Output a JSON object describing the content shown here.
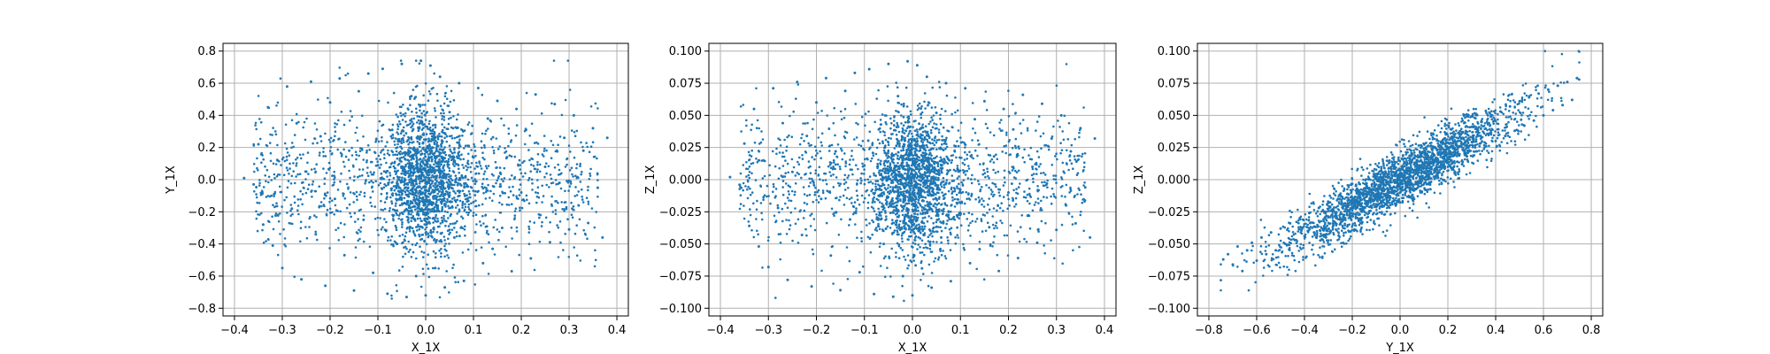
{
  "chart_data": [
    {
      "type": "scatter",
      "title": "",
      "xlabel": "X_1X",
      "ylabel": "Y_1X",
      "xlim": [
        -0.4,
        0.4
      ],
      "ylim": [
        -0.8,
        0.8
      ],
      "xticks": [
        -0.4,
        -0.3,
        -0.2,
        -0.1,
        0.0,
        0.1,
        0.2,
        0.3,
        0.4
      ],
      "yticks": [
        -0.8,
        -0.6,
        -0.4,
        -0.2,
        0.0,
        0.2,
        0.4,
        0.6,
        0.8
      ],
      "xtick_labels": [
        "−0.4",
        "−0.3",
        "−0.2",
        "−0.1",
        "0.0",
        "0.1",
        "0.2",
        "0.3",
        "0.4"
      ],
      "ytick_labels": [
        "−0.8",
        "−0.6",
        "−0.4",
        "−0.2",
        "0.0",
        "0.2",
        "0.4",
        "0.6",
        "0.8"
      ],
      "grid": true,
      "color": "#1f77b4",
      "points": [
        [
          -0.38,
          0.01
        ],
        [
          -0.36,
          -0.03
        ],
        [
          -0.35,
          0.22
        ],
        [
          -0.34,
          -0.28
        ],
        [
          -0.33,
          0.45
        ],
        [
          -0.32,
          -0.41
        ],
        [
          -0.31,
          0.12
        ],
        [
          -0.3,
          -0.55
        ],
        [
          -0.29,
          0.58
        ],
        [
          -0.28,
          -0.18
        ],
        [
          -0.27,
          0.35
        ],
        [
          -0.26,
          -0.62
        ],
        [
          -0.25,
          0.05
        ],
        [
          -0.24,
          0.61
        ],
        [
          -0.23,
          -0.34
        ],
        [
          -0.22,
          0.27
        ],
        [
          -0.21,
          -0.66
        ],
        [
          -0.2,
          0.48
        ],
        [
          -0.19,
          -0.12
        ],
        [
          -0.18,
          0.63
        ],
        [
          -0.17,
          -0.47
        ],
        [
          -0.16,
          0.18
        ],
        [
          -0.15,
          -0.69
        ],
        [
          -0.14,
          0.55
        ],
        [
          -0.13,
          -0.25
        ],
        [
          -0.12,
          0.66
        ],
        [
          -0.11,
          -0.58
        ],
        [
          -0.1,
          0.09
        ],
        [
          -0.09,
          0.69
        ],
        [
          -0.08,
          -0.71
        ],
        [
          -0.07,
          0.31
        ],
        [
          -0.06,
          -0.4
        ],
        [
          -0.05,
          0.72
        ],
        [
          -0.04,
          -0.73
        ],
        [
          -0.03,
          0.52
        ],
        [
          -0.02,
          -0.6
        ],
        [
          -0.01,
          0.74
        ],
        [
          0.0,
          -0.72
        ],
        [
          0.01,
          0.71
        ],
        [
          0.02,
          -0.55
        ],
        [
          0.03,
          0.64
        ],
        [
          0.04,
          -0.67
        ],
        [
          0.05,
          0.42
        ],
        [
          0.06,
          -0.36
        ],
        [
          0.07,
          0.6
        ],
        [
          0.08,
          -0.63
        ],
        [
          0.09,
          0.21
        ],
        [
          0.1,
          -0.14
        ],
        [
          0.11,
          0.57
        ],
        [
          0.12,
          -0.52
        ],
        [
          0.13,
          0.38
        ],
        [
          0.14,
          -0.43
        ],
        [
          0.15,
          0.49
        ],
        [
          0.16,
          -0.3
        ],
        [
          0.17,
          0.14
        ],
        [
          0.18,
          -0.57
        ],
        [
          0.19,
          0.44
        ],
        [
          0.2,
          -0.08
        ],
        [
          0.21,
          0.31
        ],
        [
          0.22,
          -0.49
        ],
        [
          0.23,
          0.53
        ],
        [
          0.24,
          -0.22
        ],
        [
          0.25,
          0.08
        ],
        [
          0.26,
          -0.39
        ],
        [
          0.27,
          0.47
        ],
        [
          0.28,
          -0.02
        ],
        [
          0.29,
          0.26
        ],
        [
          0.3,
          -0.31
        ],
        [
          0.31,
          0.4
        ],
        [
          0.32,
          -0.16
        ],
        [
          0.33,
          0.18
        ],
        [
          0.34,
          -0.27
        ],
        [
          0.35,
          0.32
        ],
        [
          0.36,
          -0.05
        ],
        [
          0.37,
          -0.36
        ],
        [
          0.38,
          0.26
        ]
      ]
    },
    {
      "type": "scatter",
      "title": "",
      "xlabel": "X_1X",
      "ylabel": "Z_1X",
      "xlim": [
        -0.4,
        0.4
      ],
      "ylim": [
        -0.1,
        0.1
      ],
      "xticks": [
        -0.4,
        -0.3,
        -0.2,
        -0.1,
        0.0,
        0.1,
        0.2,
        0.3,
        0.4
      ],
      "yticks": [
        -0.1,
        -0.075,
        -0.05,
        -0.025,
        0.0,
        0.025,
        0.05,
        0.075,
        0.1
      ],
      "xtick_labels": [
        "−0.4",
        "−0.3",
        "−0.2",
        "−0.1",
        "0.0",
        "0.1",
        "0.2",
        "0.3",
        "0.4"
      ],
      "ytick_labels": [
        "−0.100",
        "−0.075",
        "−0.050",
        "−0.025",
        "0.000",
        "0.025",
        "0.050",
        "0.075",
        "0.100"
      ],
      "grid": true,
      "color": "#1f77b4",
      "points": [
        [
          -0.38,
          0.002
        ],
        [
          -0.36,
          -0.004
        ],
        [
          -0.35,
          0.028
        ],
        [
          -0.34,
          -0.036
        ],
        [
          -0.33,
          0.055
        ],
        [
          -0.32,
          -0.052
        ],
        [
          -0.31,
          0.015
        ],
        [
          -0.3,
          -0.068
        ],
        [
          -0.29,
          0.071
        ],
        [
          -0.28,
          -0.022
        ],
        [
          -0.27,
          0.044
        ],
        [
          -0.26,
          -0.078
        ],
        [
          -0.25,
          0.006
        ],
        [
          -0.24,
          0.076
        ],
        [
          -0.23,
          -0.043
        ],
        [
          -0.22,
          0.034
        ],
        [
          -0.21,
          -0.083
        ],
        [
          -0.2,
          0.06
        ],
        [
          -0.19,
          -0.015
        ],
        [
          -0.18,
          0.079
        ],
        [
          -0.17,
          -0.059
        ],
        [
          -0.16,
          0.022
        ],
        [
          -0.15,
          -0.086
        ],
        [
          -0.14,
          0.069
        ],
        [
          -0.13,
          -0.031
        ],
        [
          -0.12,
          0.083
        ],
        [
          -0.11,
          -0.072
        ],
        [
          -0.1,
          0.011
        ],
        [
          -0.09,
          0.086
        ],
        [
          -0.08,
          -0.089
        ],
        [
          -0.07,
          0.039
        ],
        [
          -0.06,
          -0.05
        ],
        [
          -0.05,
          0.09
        ],
        [
          -0.04,
          -0.091
        ],
        [
          -0.03,
          0.065
        ],
        [
          -0.02,
          -0.075
        ],
        [
          -0.01,
          0.092
        ],
        [
          0.0,
          -0.09
        ],
        [
          0.01,
          0.089
        ],
        [
          0.02,
          -0.069
        ],
        [
          0.03,
          0.08
        ],
        [
          0.04,
          -0.084
        ],
        [
          0.05,
          0.052
        ],
        [
          0.06,
          -0.045
        ],
        [
          0.07,
          0.075
        ],
        [
          0.08,
          -0.079
        ],
        [
          0.09,
          0.026
        ],
        [
          0.1,
          -0.018
        ],
        [
          0.11,
          0.071
        ],
        [
          0.12,
          -0.065
        ],
        [
          0.13,
          0.047
        ],
        [
          0.14,
          -0.054
        ],
        [
          0.15,
          0.061
        ],
        [
          0.16,
          -0.037
        ],
        [
          0.17,
          0.018
        ],
        [
          0.18,
          -0.071
        ],
        [
          0.19,
          0.055
        ],
        [
          0.2,
          -0.01
        ],
        [
          0.21,
          0.039
        ],
        [
          0.22,
          -0.061
        ],
        [
          0.23,
          0.066
        ],
        [
          0.24,
          -0.028
        ],
        [
          0.25,
          0.01
        ],
        [
          0.26,
          -0.049
        ],
        [
          0.27,
          0.059
        ],
        [
          0.28,
          -0.003
        ],
        [
          0.29,
          0.032
        ],
        [
          0.3,
          -0.039
        ],
        [
          0.31,
          0.05
        ],
        [
          0.32,
          -0.02
        ],
        [
          0.33,
          0.022
        ],
        [
          0.34,
          -0.034
        ],
        [
          0.35,
          0.04
        ],
        [
          0.36,
          -0.006
        ],
        [
          0.37,
          -0.045
        ],
        [
          0.38,
          0.032
        ]
      ]
    },
    {
      "type": "scatter",
      "title": "",
      "xlabel": "Y_1X",
      "ylabel": "Z_1X",
      "xlim": [
        -0.8,
        0.8
      ],
      "ylim": [
        -0.1,
        0.1
      ],
      "xticks": [
        -0.8,
        -0.6,
        -0.4,
        -0.2,
        0.0,
        0.2,
        0.4,
        0.6,
        0.8
      ],
      "yticks": [
        -0.1,
        -0.075,
        -0.05,
        -0.025,
        0.0,
        0.025,
        0.05,
        0.075,
        0.1
      ],
      "xtick_labels": [
        "−0.8",
        "−0.6",
        "−0.4",
        "−0.2",
        "0.0",
        "0.2",
        "0.4",
        "0.6",
        "0.8"
      ],
      "ytick_labels": [
        "−0.100",
        "−0.075",
        "−0.050",
        "−0.025",
        "0.000",
        "0.025",
        "0.050",
        "0.075",
        "0.100"
      ],
      "grid": true,
      "color": "#1f77b4",
      "points": [
        [
          -0.74,
          -0.062
        ],
        [
          -0.72,
          -0.058
        ],
        [
          -0.7,
          -0.066
        ],
        [
          -0.68,
          -0.052
        ],
        [
          -0.66,
          -0.071
        ],
        [
          -0.64,
          -0.055
        ],
        [
          -0.62,
          -0.049
        ],
        [
          -0.6,
          -0.063
        ],
        [
          -0.58,
          -0.045
        ],
        [
          -0.56,
          -0.058
        ],
        [
          -0.54,
          -0.041
        ],
        [
          -0.52,
          -0.055
        ],
        [
          -0.5,
          -0.038
        ],
        [
          -0.48,
          -0.05
        ],
        [
          -0.46,
          -0.034
        ],
        [
          -0.44,
          -0.047
        ],
        [
          -0.42,
          -0.03
        ],
        [
          -0.4,
          -0.044
        ],
        [
          -0.38,
          -0.026
        ],
        [
          -0.36,
          -0.041
        ],
        [
          -0.34,
          -0.022
        ],
        [
          -0.32,
          -0.038
        ],
        [
          -0.3,
          -0.018
        ],
        [
          -0.28,
          -0.034
        ],
        [
          -0.26,
          -0.015
        ],
        [
          -0.24,
          -0.031
        ],
        [
          -0.22,
          -0.011
        ],
        [
          -0.2,
          -0.028
        ],
        [
          -0.18,
          -0.007
        ],
        [
          -0.16,
          -0.025
        ],
        [
          -0.14,
          -0.003
        ],
        [
          -0.12,
          -0.021
        ],
        [
          -0.1,
          0.001
        ],
        [
          -0.08,
          -0.018
        ],
        [
          -0.06,
          0.005
        ],
        [
          -0.04,
          -0.014
        ],
        [
          -0.02,
          0.009
        ],
        [
          0.0,
          -0.01
        ],
        [
          0.02,
          0.013
        ],
        [
          0.04,
          -0.006
        ],
        [
          0.06,
          0.017
        ],
        [
          0.08,
          -0.002
        ],
        [
          0.1,
          0.021
        ],
        [
          0.12,
          0.002
        ],
        [
          0.14,
          0.025
        ],
        [
          0.16,
          0.006
        ],
        [
          0.18,
          0.029
        ],
        [
          0.2,
          0.01
        ],
        [
          0.22,
          0.033
        ],
        [
          0.24,
          0.014
        ],
        [
          0.26,
          0.037
        ],
        [
          0.28,
          0.018
        ],
        [
          0.3,
          0.041
        ],
        [
          0.32,
          0.022
        ],
        [
          0.34,
          0.045
        ],
        [
          0.36,
          0.026
        ],
        [
          0.38,
          0.049
        ],
        [
          0.4,
          0.03
        ],
        [
          0.42,
          0.053
        ],
        [
          0.44,
          0.034
        ],
        [
          0.46,
          0.057
        ],
        [
          0.48,
          0.038
        ],
        [
          0.5,
          0.061
        ],
        [
          0.52,
          0.042
        ],
        [
          0.54,
          0.064
        ],
        [
          0.56,
          0.046
        ],
        [
          0.58,
          0.067
        ],
        [
          0.6,
          0.05
        ],
        [
          0.62,
          0.07
        ],
        [
          0.64,
          0.054
        ],
        [
          0.66,
          0.073
        ],
        [
          0.68,
          0.058
        ],
        [
          0.7,
          0.076
        ],
        [
          0.72,
          0.062
        ],
        [
          0.74,
          0.079
        ]
      ]
    }
  ]
}
